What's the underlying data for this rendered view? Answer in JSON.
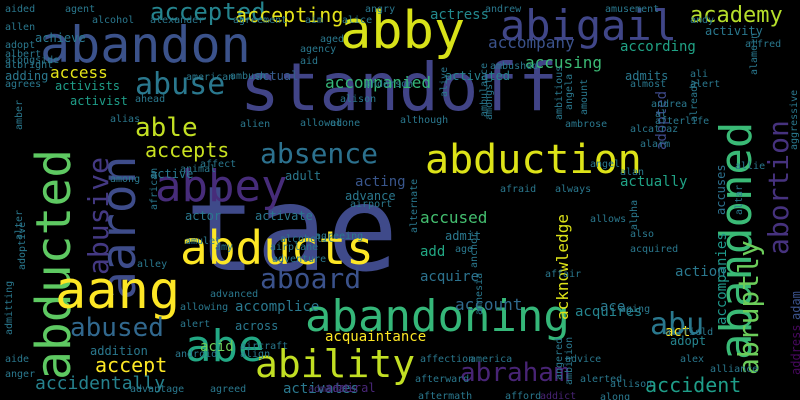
{
  "words": [
    {
      "text": "tae",
      "color": "#3f4a8a"
    },
    {
      "text": "standoff",
      "color": "#414487"
    },
    {
      "text": "abandon",
      "color": "#3b528b"
    },
    {
      "text": "abby",
      "color": "#d8e219"
    },
    {
      "text": "abigail",
      "color": "#404688"
    },
    {
      "text": "abduction",
      "color": "#dde318"
    },
    {
      "text": "abducts",
      "color": "#fde725"
    },
    {
      "text": "abandoning",
      "color": "#35b779"
    },
    {
      "text": "abbey",
      "color": "#472c7a"
    },
    {
      "text": "aaron",
      "color": "#3e4c8a"
    },
    {
      "text": "abducted",
      "color": "#5ec962"
    },
    {
      "text": "aang",
      "color": "#fde725"
    },
    {
      "text": "abandoned",
      "color": "#3aba76"
    },
    {
      "text": "abe",
      "color": "#22a884"
    },
    {
      "text": "ability",
      "color": "#c2df23"
    },
    {
      "text": "abortion",
      "color": "#46327e"
    },
    {
      "text": "abruptly",
      "color": "#6ccd5a"
    },
    {
      "text": "abu",
      "color": "#2a788e"
    },
    {
      "text": "abraham",
      "color": "#482475"
    },
    {
      "text": "absence",
      "color": "#2c718e"
    },
    {
      "text": "abuse",
      "color": "#2a788e"
    },
    {
      "text": "aboard",
      "color": "#3b528b"
    },
    {
      "text": "abused",
      "color": "#31688e"
    },
    {
      "text": "academy",
      "color": "#b5de2b"
    },
    {
      "text": "accident",
      "color": "#1f9e89"
    },
    {
      "text": "accept",
      "color": "#fde725"
    },
    {
      "text": "able",
      "color": "#c2df23"
    },
    {
      "text": "abusive",
      "color": "#443983"
    },
    {
      "text": "accidentally",
      "color": "#26828e"
    },
    {
      "text": "accepts",
      "color": "#c8e020"
    },
    {
      "text": "accepted",
      "color": "#25848e"
    },
    {
      "text": "accepting",
      "color": "#e5e419"
    },
    {
      "text": "accompanied",
      "color": "#35b779"
    },
    {
      "text": "accused",
      "color": "#44bf70"
    },
    {
      "text": "account",
      "color": "#306a8e"
    },
    {
      "text": "access",
      "color": "#e5e419"
    },
    {
      "text": "acknowledge",
      "color": "#dde318"
    },
    {
      "text": "accompanies",
      "color": "#1f988b"
    },
    {
      "text": "accomplice",
      "color": "#2a788e"
    },
    {
      "text": "accusing",
      "color": "#3bbb75"
    },
    {
      "text": "according",
      "color": "#20a386"
    },
    {
      "text": "acquaintance",
      "color": "#fde725"
    },
    {
      "text": "accompany",
      "color": "#3b528b"
    },
    {
      "text": "activists",
      "color": "#1f9e89"
    },
    {
      "text": "actress",
      "color": "#23898e"
    },
    {
      "text": "activates",
      "color": "#2a788e"
    },
    {
      "text": "acquires",
      "color": "#25848e"
    },
    {
      "text": "acquire",
      "color": "#2c728e"
    },
    {
      "text": "address",
      "color": "#46085c"
    },
    {
      "text": "adam",
      "color": "#3b528b"
    },
    {
      "text": "action",
      "color": "#2a788e"
    },
    {
      "text": "actually",
      "color": "#20a386"
    },
    {
      "text": "acting",
      "color": "#39568c"
    },
    {
      "text": "accuses",
      "color": "#2c718e"
    },
    {
      "text": "adopted",
      "color": "#3e4989"
    },
    {
      "text": "admits",
      "color": "#2a788e"
    },
    {
      "text": "activated",
      "color": "#26828e"
    },
    {
      "text": "actual",
      "color": "#365d8d"
    },
    {
      "text": "acid",
      "color": "#6ccd5a"
    },
    {
      "text": "ace",
      "color": "#2a788e"
    },
    {
      "text": "admiral",
      "color": "#482677"
    },
    {
      "text": "activist",
      "color": "#1f9e89"
    },
    {
      "text": "achieve",
      "color": "#2a788e"
    },
    {
      "text": "addition",
      "color": "#2a788e"
    },
    {
      "text": "across",
      "color": "#2a788e"
    },
    {
      "text": "activity",
      "color": "#2a788e"
    },
    {
      "text": "activate",
      "color": "#2a788e"
    },
    {
      "text": "adopt",
      "color": "#25848e"
    },
    {
      "text": "add",
      "color": "#22a884"
    },
    {
      "text": "adding",
      "color": "#2a788e"
    },
    {
      "text": "advance",
      "color": "#2a788e"
    },
    {
      "text": "actor",
      "color": "#2a788e"
    },
    {
      "text": "act",
      "color": "#fde725"
    },
    {
      "text": "admit",
      "color": "#2a788e"
    },
    {
      "text": "adult",
      "color": "#2a788e"
    },
    {
      "text": "active",
      "color": "#2a788e"
    },
    {
      "text": "advice",
      "color": "#2a788e"
    },
    {
      "text": "aftermath",
      "color": "#2a788e"
    },
    {
      "text": "afford",
      "color": "#2a788e"
    },
    {
      "text": "addict",
      "color": "#482475"
    },
    {
      "text": "admirals",
      "color": "#46337e"
    },
    {
      "text": "agreeing",
      "color": "#2a788e"
    },
    {
      "text": "alcoholic",
      "color": "#2a788e"
    },
    {
      "text": "alien",
      "color": "#2a788e"
    },
    {
      "text": "alert",
      "color": "#2a788e"
    },
    {
      "text": "alex",
      "color": "#2a788e"
    },
    {
      "text": "ali",
      "color": "#2a788e"
    },
    {
      "text": "al",
      "color": "#2a788e"
    },
    {
      "text": "afterlife",
      "color": "#2a788e"
    },
    {
      "text": "affect",
      "color": "#2a788e"
    },
    {
      "text": "advanced",
      "color": "#2a788e"
    },
    {
      "text": "admitting",
      "color": "#2a788e"
    },
    {
      "text": "adoptive",
      "color": "#2a788e"
    },
    {
      "text": "african",
      "color": "#2a788e"
    },
    {
      "text": "among",
      "color": "#2a788e"
    },
    {
      "text": "alias",
      "color": "#2a788e"
    },
    {
      "text": "aide",
      "color": "#2a788e"
    },
    {
      "text": "anger",
      "color": "#2a788e"
    },
    {
      "text": "aided",
      "color": "#2a788e"
    },
    {
      "text": "allen",
      "color": "#2a788e"
    },
    {
      "text": "albert",
      "color": "#2a788e"
    },
    {
      "text": "agrees",
      "color": "#2a788e"
    },
    {
      "text": "agent",
      "color": "#2a788e"
    },
    {
      "text": "alcohol",
      "color": "#2a788e"
    },
    {
      "text": "alexander",
      "color": "#2a788e"
    },
    {
      "text": "agreement",
      "color": "#2a788e"
    },
    {
      "text": "aim",
      "color": "#2a788e"
    },
    {
      "text": "alice",
      "color": "#2a788e"
    },
    {
      "text": "angry",
      "color": "#2a788e"
    },
    {
      "text": "andrew",
      "color": "#2a788e"
    },
    {
      "text": "amusement",
      "color": "#2a788e"
    },
    {
      "text": "andy",
      "color": "#2a788e"
    },
    {
      "text": "alfred",
      "color": "#2a788e"
    },
    {
      "text": "agency",
      "color": "#2a788e"
    },
    {
      "text": "aid",
      "color": "#2a788e"
    },
    {
      "text": "aged",
      "color": "#2a788e"
    },
    {
      "text": "ambushed",
      "color": "#2a788e"
    },
    {
      "text": "almost",
      "color": "#2a788e"
    },
    {
      "text": "alamein",
      "color": "#2a788e"
    },
    {
      "text": "andrea",
      "color": "#2a788e"
    },
    {
      "text": "already",
      "color": "#2a788e"
    },
    {
      "text": "allowed",
      "color": "#2a788e"
    },
    {
      "text": "alone",
      "color": "#2a788e"
    },
    {
      "text": "alison",
      "color": "#2a788e"
    },
    {
      "text": "alarm",
      "color": "#2a788e"
    },
    {
      "text": "angel",
      "color": "#2a788e"
    },
    {
      "text": "alan",
      "color": "#2a788e"
    },
    {
      "text": "allie",
      "color": "#2a788e"
    },
    {
      "text": "airport",
      "color": "#2a788e"
    },
    {
      "text": "always",
      "color": "#2a788e"
    },
    {
      "text": "afraid",
      "color": "#2a788e"
    },
    {
      "text": "allows",
      "color": "#2a788e"
    },
    {
      "text": "amy",
      "color": "#2a788e"
    },
    {
      "text": "airplane",
      "color": "#2a788e"
    },
    {
      "text": "adventure",
      "color": "#2a788e"
    },
    {
      "text": "amulet",
      "color": "#2a788e"
    },
    {
      "text": "alley",
      "color": "#2a788e"
    },
    {
      "text": "ago",
      "color": "#2a788e"
    },
    {
      "text": "alpha",
      "color": "#2a788e"
    },
    {
      "text": "altar",
      "color": "#2a788e"
    },
    {
      "text": "affair",
      "color": "#2a788e"
    },
    {
      "text": "allowing",
      "color": "#2a788e"
    },
    {
      "text": "aging",
      "color": "#2a788e"
    },
    {
      "text": "airfield",
      "color": "#2a788e"
    },
    {
      "text": "aircraft",
      "color": "#2a788e"
    },
    {
      "text": "alert",
      "color": "#2a788e"
    },
    {
      "text": "align",
      "color": "#2a788e"
    },
    {
      "text": "affection",
      "color": "#2a788e"
    },
    {
      "text": "america",
      "color": "#2a788e"
    },
    {
      "text": "alliance",
      "color": "#2a788e"
    },
    {
      "text": "alerted",
      "color": "#2a788e"
    },
    {
      "text": "advantage",
      "color": "#2a788e"
    },
    {
      "text": "agreed",
      "color": "#2a788e"
    },
    {
      "text": "allison",
      "color": "#2a788e"
    },
    {
      "text": "afterward",
      "color": "#2a788e"
    },
    {
      "text": "along",
      "color": "#2a788e"
    },
    {
      "text": "alter",
      "color": "#2a788e"
    },
    {
      "text": "amber",
      "color": "#2a788e"
    },
    {
      "text": "alongside",
      "color": "#2a788e"
    },
    {
      "text": "albright",
      "color": "#2a788e"
    },
    {
      "text": "american",
      "color": "#2a788e"
    },
    {
      "text": "ambush",
      "color": "#2a788e"
    },
    {
      "text": "ahead",
      "color": "#2a788e"
    },
    {
      "text": "anderson",
      "color": "#2a788e"
    },
    {
      "text": "amount",
      "color": "#2a788e"
    },
    {
      "text": "angela",
      "color": "#2a788e"
    },
    {
      "text": "alive",
      "color": "#2a788e"
    },
    {
      "text": "ambulance",
      "color": "#2a788e"
    },
    {
      "text": "amongst",
      "color": "#2a788e"
    },
    {
      "text": "although",
      "color": "#2a788e"
    },
    {
      "text": "alternate",
      "color": "#2a788e"
    },
    {
      "text": "amnesia",
      "color": "#2a788e"
    },
    {
      "text": "alcatraz",
      "color": "#2a788e"
    },
    {
      "text": "aggressive",
      "color": "#2a788e"
    },
    {
      "text": "ambitious",
      "color": "#2a788e"
    },
    {
      "text": "ambition",
      "color": "#2a788e"
    },
    {
      "text": "angered",
      "color": "#2a788e"
    },
    {
      "text": "ambrose",
      "color": "#2a788e"
    },
    {
      "text": "android",
      "color": "#2a788e"
    },
    {
      "text": "animal",
      "color": "#2a788e"
    },
    {
      "text": "anchor",
      "color": "#2a788e"
    },
    {
      "text": "also",
      "color": "#2a788e"
    },
    {
      "text": "acquired",
      "color": "#2a788e"
    },
    {
      "text": "adopt",
      "color": "#2a788e"
    }
  ]
}
